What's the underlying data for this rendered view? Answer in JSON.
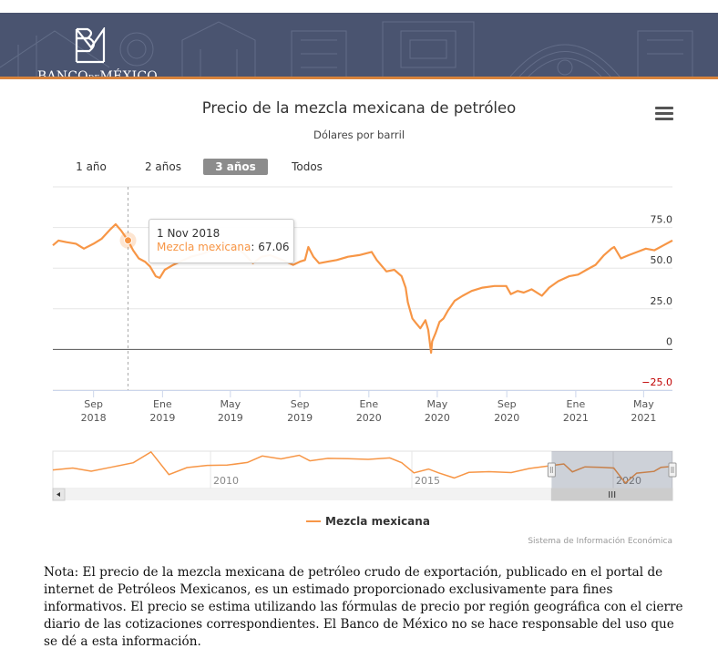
{
  "header": {
    "logo_text_banco": "BANCO",
    "logo_text_de": "DE",
    "logo_text_mexico": "MÉXICO",
    "colors": {
      "banner": "#4a5470",
      "rule": "#d9833b"
    }
  },
  "menu": {
    "icon": "hamburger-menu-icon"
  },
  "range_selector": {
    "buttons": [
      {
        "label": "1 año",
        "active": false
      },
      {
        "label": "2 años",
        "active": false
      },
      {
        "label": "3 años",
        "active": true
      },
      {
        "label": "Todos",
        "active": false
      }
    ]
  },
  "tooltip": {
    "date": "1 Nov 2018",
    "series": "Mezcla mexicana",
    "value": "67.06"
  },
  "chart_data": {
    "type": "line",
    "title": "Precio de la mezcla mexicana de petróleo",
    "subtitle": "Dólares por barril",
    "color": "#f79646",
    "negative_tick_color": "#c00000",
    "y_ticks": [
      {
        "value": 75,
        "label": "75.0"
      },
      {
        "value": 50,
        "label": "50.0"
      },
      {
        "value": 25,
        "label": "25.0"
      },
      {
        "value": 0,
        "label": "0"
      },
      {
        "value": -25,
        "label": "−25.0"
      }
    ],
    "x_ticks": [
      {
        "date": "2018-09-01",
        "month": "Sep",
        "year": "2018"
      },
      {
        "date": "2019-01-01",
        "month": "Ene",
        "year": "2019"
      },
      {
        "date": "2019-05-01",
        "month": "May",
        "year": "2019"
      },
      {
        "date": "2019-09-01",
        "month": "Sep",
        "year": "2019"
      },
      {
        "date": "2020-01-01",
        "month": "Ene",
        "year": "2020"
      },
      {
        "date": "2020-05-01",
        "month": "May",
        "year": "2020"
      },
      {
        "date": "2020-09-01",
        "month": "Sep",
        "year": "2020"
      },
      {
        "date": "2021-01-01",
        "month": "Ene",
        "year": "2021"
      },
      {
        "date": "2021-05-01",
        "month": "May",
        "year": "2021"
      }
    ],
    "xlim": [
      "2018-06-21",
      "2021-06-21"
    ],
    "ylim": [
      -25,
      100
    ],
    "series": [
      {
        "name": "Mezcla mexicana",
        "points": [
          [
            "2018-06-21",
            64
          ],
          [
            "2018-07-01",
            67
          ],
          [
            "2018-07-15",
            66
          ],
          [
            "2018-08-01",
            65
          ],
          [
            "2018-08-15",
            62
          ],
          [
            "2018-09-01",
            65
          ],
          [
            "2018-09-15",
            68
          ],
          [
            "2018-10-01",
            74
          ],
          [
            "2018-10-10",
            77
          ],
          [
            "2018-10-20",
            73
          ],
          [
            "2018-11-01",
            67
          ],
          [
            "2018-11-10",
            61
          ],
          [
            "2018-11-20",
            56
          ],
          [
            "2018-12-01",
            54
          ],
          [
            "2018-12-10",
            51
          ],
          [
            "2018-12-20",
            45
          ],
          [
            "2018-12-27",
            44
          ],
          [
            "2019-01-05",
            49
          ],
          [
            "2019-01-20",
            52
          ],
          [
            "2019-02-01",
            54
          ],
          [
            "2019-02-20",
            57
          ],
          [
            "2019-03-15",
            59
          ],
          [
            "2019-04-01",
            62
          ],
          [
            "2019-04-20",
            65
          ],
          [
            "2019-05-10",
            63
          ],
          [
            "2019-05-25",
            59
          ],
          [
            "2019-06-10",
            53
          ],
          [
            "2019-06-25",
            57
          ],
          [
            "2019-07-10",
            58
          ],
          [
            "2019-08-01",
            55
          ],
          [
            "2019-08-20",
            52
          ],
          [
            "2019-09-01",
            54
          ],
          [
            "2019-09-10",
            55
          ],
          [
            "2019-09-16",
            63
          ],
          [
            "2019-09-25",
            57
          ],
          [
            "2019-10-05",
            53
          ],
          [
            "2019-10-20",
            54
          ],
          [
            "2019-11-05",
            55
          ],
          [
            "2019-11-25",
            57
          ],
          [
            "2019-12-15",
            58
          ],
          [
            "2020-01-06",
            60
          ],
          [
            "2020-01-15",
            55
          ],
          [
            "2020-02-01",
            48
          ],
          [
            "2020-02-15",
            49
          ],
          [
            "2020-02-28",
            45
          ],
          [
            "2020-03-06",
            38
          ],
          [
            "2020-03-10",
            29
          ],
          [
            "2020-03-18",
            19
          ],
          [
            "2020-03-25",
            16
          ],
          [
            "2020-04-01",
            13
          ],
          [
            "2020-04-10",
            18
          ],
          [
            "2020-04-15",
            12
          ],
          [
            "2020-04-20",
            -2
          ],
          [
            "2020-04-22",
            5
          ],
          [
            "2020-04-28",
            10
          ],
          [
            "2020-05-05",
            17
          ],
          [
            "2020-05-12",
            19
          ],
          [
            "2020-05-20",
            24
          ],
          [
            "2020-06-01",
            30
          ],
          [
            "2020-06-15",
            33
          ],
          [
            "2020-07-01",
            36
          ],
          [
            "2020-07-20",
            38
          ],
          [
            "2020-08-10",
            39
          ],
          [
            "2020-08-31",
            39
          ],
          [
            "2020-09-08",
            34
          ],
          [
            "2020-09-20",
            36
          ],
          [
            "2020-10-01",
            35
          ],
          [
            "2020-10-15",
            37
          ],
          [
            "2020-11-02",
            33
          ],
          [
            "2020-11-15",
            38
          ],
          [
            "2020-12-01",
            42
          ],
          [
            "2020-12-20",
            45
          ],
          [
            "2021-01-05",
            46
          ],
          [
            "2021-01-20",
            49
          ],
          [
            "2021-02-05",
            52
          ],
          [
            "2021-02-20",
            58
          ],
          [
            "2021-03-05",
            62
          ],
          [
            "2021-03-10",
            63
          ],
          [
            "2021-03-22",
            56
          ],
          [
            "2021-04-05",
            58
          ],
          [
            "2021-04-20",
            60
          ],
          [
            "2021-05-05",
            62
          ],
          [
            "2021-05-20",
            61
          ],
          [
            "2021-06-05",
            64
          ],
          [
            "2021-06-21",
            67
          ]
        ]
      }
    ],
    "navigator": {
      "year_labels": [
        {
          "date": "2010-01-01",
          "label": "2010"
        },
        {
          "date": "2015-01-01",
          "label": "2015"
        },
        {
          "date": "2020-01-01",
          "label": "2020"
        }
      ],
      "xlim": [
        "2006-02-01",
        "2021-06-21"
      ],
      "selected": [
        "2018-06-21",
        "2021-06-21"
      ],
      "ylim": [
        -25,
        130
      ],
      "points": [
        [
          "2006-02-01",
          52
        ],
        [
          "2006-08-01",
          60
        ],
        [
          "2007-01-15",
          47
        ],
        [
          "2007-08-01",
          65
        ],
        [
          "2008-02-01",
          82
        ],
        [
          "2008-07-10",
          127
        ],
        [
          "2008-12-20",
          33
        ],
        [
          "2009-06-01",
          62
        ],
        [
          "2009-12-01",
          71
        ],
        [
          "2010-06-01",
          72
        ],
        [
          "2010-12-01",
          83
        ],
        [
          "2011-04-15",
          110
        ],
        [
          "2011-10-01",
          98
        ],
        [
          "2012-03-15",
          113
        ],
        [
          "2012-06-20",
          90
        ],
        [
          "2012-12-01",
          100
        ],
        [
          "2013-06-01",
          99
        ],
        [
          "2013-12-01",
          96
        ],
        [
          "2014-06-15",
          102
        ],
        [
          "2014-10-01",
          82
        ],
        [
          "2015-01-20",
          40
        ],
        [
          "2015-06-01",
          56
        ],
        [
          "2015-09-01",
          40
        ],
        [
          "2016-01-20",
          19
        ],
        [
          "2016-06-01",
          42
        ],
        [
          "2016-12-01",
          45
        ],
        [
          "2017-06-20",
          41
        ],
        [
          "2017-12-01",
          58
        ],
        [
          "2018-05-15",
          68
        ],
        [
          "2018-10-10",
          77
        ],
        [
          "2018-12-27",
          44
        ],
        [
          "2019-04-20",
          65
        ],
        [
          "2019-09-16",
          63
        ],
        [
          "2020-01-06",
          60
        ],
        [
          "2020-04-20",
          -2
        ],
        [
          "2020-08-01",
          39
        ],
        [
          "2021-01-05",
          46
        ],
        [
          "2021-03-10",
          63
        ],
        [
          "2021-06-21",
          67
        ]
      ]
    },
    "legend": {
      "label": "Mezcla mexicana",
      "position": "bottom-center"
    },
    "credits": "Sistema de Información Económica"
  },
  "note": "Nota: El precio de la mezcla mexicana de petróleo crudo de exportación, publicado en el portal de internet de Petróleos Mexicanos, es un estimado proporcionado exclusivamente para fines informativos. El precio se estima utilizando las fórmulas de precio por región geográfica con el cierre diario de las cotizaciones correspondientes. El Banco de México no se hace responsable del uso que se dé a esta información."
}
